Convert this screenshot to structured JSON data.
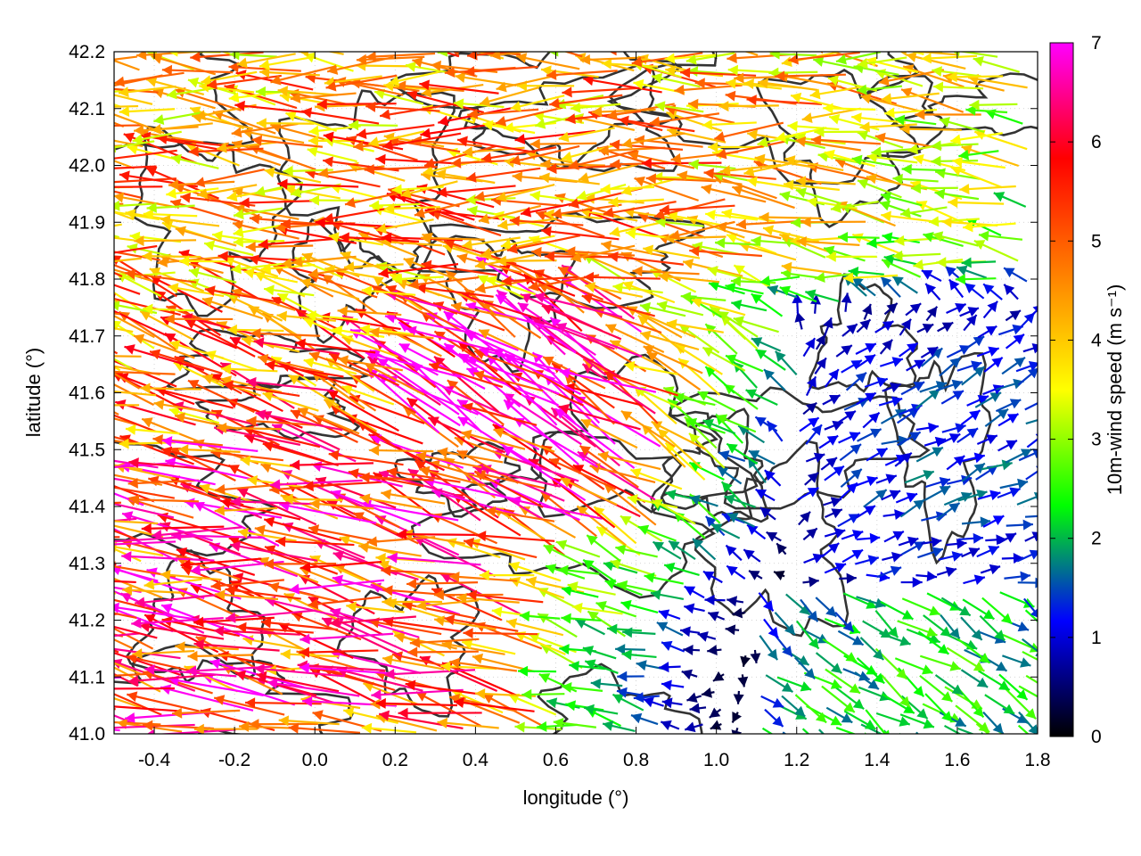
{
  "chart_data": {
    "type": "vector-field",
    "xlabel": "longitude (°)",
    "ylabel": "latitude (°)",
    "colorbar_label": "10m-wind speed (m s⁻¹)",
    "xlim": [
      -0.5,
      1.8
    ],
    "ylim": [
      41.0,
      42.2
    ],
    "x_ticks": [
      -0.4,
      -0.2,
      0.0,
      0.2,
      0.4,
      0.6,
      0.8,
      1.0,
      1.2,
      1.4,
      1.6,
      1.8
    ],
    "x_tick_labels": [
      "-0.4",
      "-0.2",
      "0.0",
      "0.2",
      "0.4",
      "0.6",
      "0.8",
      "1.0",
      "1.2",
      "1.4",
      "1.6",
      "1.8"
    ],
    "y_ticks": [
      41.0,
      41.1,
      41.2,
      41.3,
      41.4,
      41.5,
      41.6,
      41.7,
      41.8,
      41.9,
      42.0,
      42.1,
      42.2
    ],
    "y_tick_labels": [
      "41.0",
      "41.1",
      "41.2",
      "41.3",
      "41.4",
      "41.5",
      "41.6",
      "41.7",
      "41.8",
      "41.9",
      "42.0",
      "42.1",
      "42.2"
    ],
    "colorbar_range": [
      0,
      7
    ],
    "colorbar_ticks": [
      0,
      1,
      2,
      3,
      4,
      5,
      6,
      7
    ],
    "colorbar_tick_labels": [
      "0",
      "1",
      "2",
      "3",
      "4",
      "5",
      "6",
      "7"
    ],
    "colormap": [
      "#000000",
      "#0000ff",
      "#00ff00",
      "#ffff00",
      "#ff8000",
      "#ff0000",
      "#ff00ff"
    ],
    "grid": true,
    "contour_color": "#333333",
    "wind_regions": [
      {
        "lon": [
          -0.5,
          1.8
        ],
        "lat": [
          41.8,
          42.2
        ],
        "dir_deg": 180,
        "speed": 4.6
      },
      {
        "lon": [
          -0.5,
          0.6
        ],
        "lat": [
          41.0,
          41.5
        ],
        "dir_deg": 170,
        "speed": 5.8
      },
      {
        "lon": [
          0.3,
          0.9
        ],
        "lat": [
          41.35,
          41.75
        ],
        "dir_deg": 150,
        "speed": 6.8
      },
      {
        "lon": [
          1.1,
          1.8
        ],
        "lat": [
          41.0,
          41.25
        ],
        "dir_deg": 325,
        "speed": 2.5
      },
      {
        "lon": [
          1.2,
          1.8
        ],
        "lat": [
          41.25,
          41.75
        ],
        "dir_deg": 20,
        "speed": 1.6
      }
    ]
  }
}
